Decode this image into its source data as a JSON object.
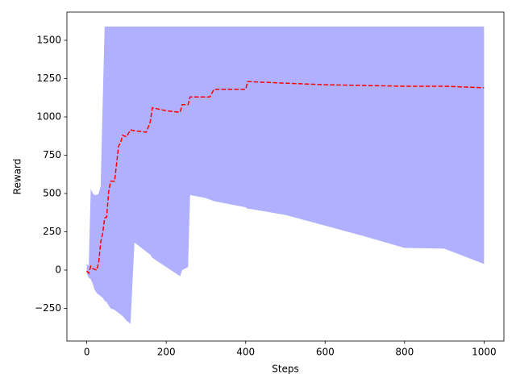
{
  "chart_data": {
    "type": "line",
    "x_label": "Steps",
    "y_label": "Reward",
    "x": [
      0,
      5,
      10,
      15,
      20,
      25,
      30,
      35,
      40,
      45,
      50,
      55,
      60,
      70,
      80,
      85,
      90,
      100,
      110,
      120,
      150,
      160,
      165,
      200,
      235,
      240,
      255,
      260,
      300,
      310,
      320,
      400,
      405,
      410,
      500,
      600,
      700,
      800,
      900,
      1000
    ],
    "series": [
      {
        "color": "#ff0000",
        "values": [
          -5,
          -20,
          25,
          10,
          5,
          0,
          50,
          180,
          240,
          340,
          345,
          510,
          580,
          580,
          810,
          830,
          880,
          870,
          915,
          910,
          900,
          970,
          1060,
          1040,
          1030,
          1080,
          1080,
          1130,
          1130,
          1130,
          1180,
          1180,
          1230,
          1230,
          1220,
          1210,
          1205,
          1200,
          1200,
          1190
        ]
      }
    ],
    "band": {
      "color": "#b0b0ff",
      "upper": [
        40,
        30,
        530,
        500,
        490,
        490,
        500,
        550,
        1090,
        1590,
        1590,
        1590,
        1590,
        1590,
        1590,
        1590,
        1590,
        1590,
        1590,
        1590,
        1590,
        1590,
        1590,
        1590,
        1590,
        1590,
        1590,
        1590,
        1590,
        1590,
        1590,
        1590,
        1590,
        1590,
        1590,
        1590,
        1590,
        1590,
        1590,
        1590
      ],
      "lower": [
        -20,
        -50,
        -60,
        -90,
        -130,
        -150,
        -160,
        -170,
        -180,
        -200,
        -210,
        -230,
        -250,
        -260,
        -280,
        -290,
        -300,
        -330,
        -350,
        180,
        120,
        100,
        80,
        20,
        -40,
        0,
        20,
        490,
        470,
        460,
        450,
        410,
        400,
        400,
        360,
        290,
        220,
        145,
        140,
        40
      ]
    },
    "xlim": [
      -50,
      1050
    ],
    "ylim": [
      -463,
      1684
    ],
    "xticks": [
      0,
      200,
      400,
      600,
      800,
      1000
    ],
    "yticks": [
      {
        "value": -250,
        "label": "−250"
      },
      0,
      250,
      500,
      750,
      1000,
      1250,
      1500
    ]
  }
}
